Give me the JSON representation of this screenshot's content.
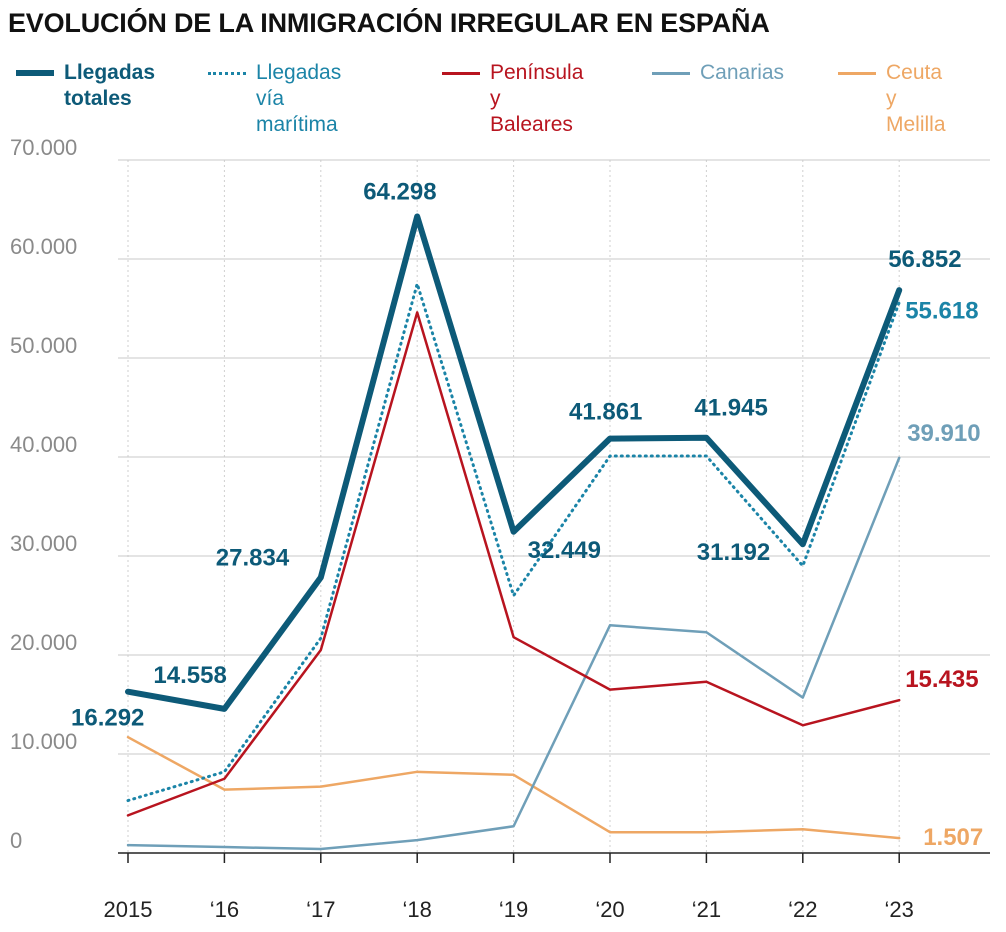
{
  "chart_data": {
    "type": "line",
    "title": "EVOLUCIÓN DE LA INMIGRACIÓN IRREGULAR EN ESPAÑA",
    "categories": [
      "2015",
      "‘16",
      "‘17",
      "‘18",
      "‘19",
      "‘20",
      "‘21",
      "‘22",
      "‘23"
    ],
    "ylim": [
      0,
      70000
    ],
    "y_ticks": [
      {
        "value": 0,
        "label": "0"
      },
      {
        "value": 10000,
        "label": "10.000"
      },
      {
        "value": 20000,
        "label": "20.000"
      },
      {
        "value": 30000,
        "label": "30.000"
      },
      {
        "value": 40000,
        "label": "40.000"
      },
      {
        "value": 50000,
        "label": "50.000"
      },
      {
        "value": 60000,
        "label": "60.000"
      },
      {
        "value": 70000,
        "label": "70.000"
      }
    ],
    "grid": true,
    "legend_position": "top",
    "series": [
      {
        "name": "Llegadas\ntotales",
        "color": "#0d5a78",
        "style": "solid-thick",
        "values": [
          16292,
          14558,
          27834,
          64298,
          32449,
          41861,
          41945,
          31192,
          56852
        ]
      },
      {
        "name": "Llegadas vía\nmarítima",
        "color": "#1b84a7",
        "style": "dotted",
        "values": [
          5300,
          8200,
          21700,
          57500,
          26000,
          40100,
          40100,
          29000,
          55618
        ]
      },
      {
        "name": "Península\ny Baleares",
        "color": "#b8141f",
        "style": "solid",
        "values": [
          3800,
          7500,
          20500,
          54600,
          21800,
          16500,
          17300,
          12900,
          15435
        ]
      },
      {
        "name": "Canarias",
        "color": "#6f9fb8",
        "style": "solid",
        "values": [
          800,
          600,
          400,
          1300,
          2700,
          23000,
          22300,
          15700,
          39910
        ]
      },
      {
        "name": "Ceuta\ny Melilla",
        "color": "#eea764",
        "style": "solid",
        "values": [
          11700,
          6400,
          6700,
          8200,
          7900,
          2100,
          2100,
          2400,
          1507
        ]
      }
    ],
    "annotations": [
      {
        "text": "16.292",
        "series": 0,
        "index": 0
      },
      {
        "text": "14.558",
        "series": 0,
        "index": 1
      },
      {
        "text": "27.834",
        "series": 0,
        "index": 2
      },
      {
        "text": "64.298",
        "series": 0,
        "index": 3
      },
      {
        "text": "32.449",
        "series": 0,
        "index": 4
      },
      {
        "text": "41.861",
        "series": 0,
        "index": 5
      },
      {
        "text": "41.945",
        "series": 0,
        "index": 6
      },
      {
        "text": "31.192",
        "series": 0,
        "index": 7
      },
      {
        "text": "56.852",
        "series": 0,
        "index": 8
      },
      {
        "text": "55.618",
        "series": 1,
        "index": 8
      },
      {
        "text": "39.910",
        "series": 3,
        "index": 8
      },
      {
        "text": "15.435",
        "series": 2,
        "index": 8
      },
      {
        "text": "1.507",
        "series": 4,
        "index": 8
      }
    ]
  }
}
